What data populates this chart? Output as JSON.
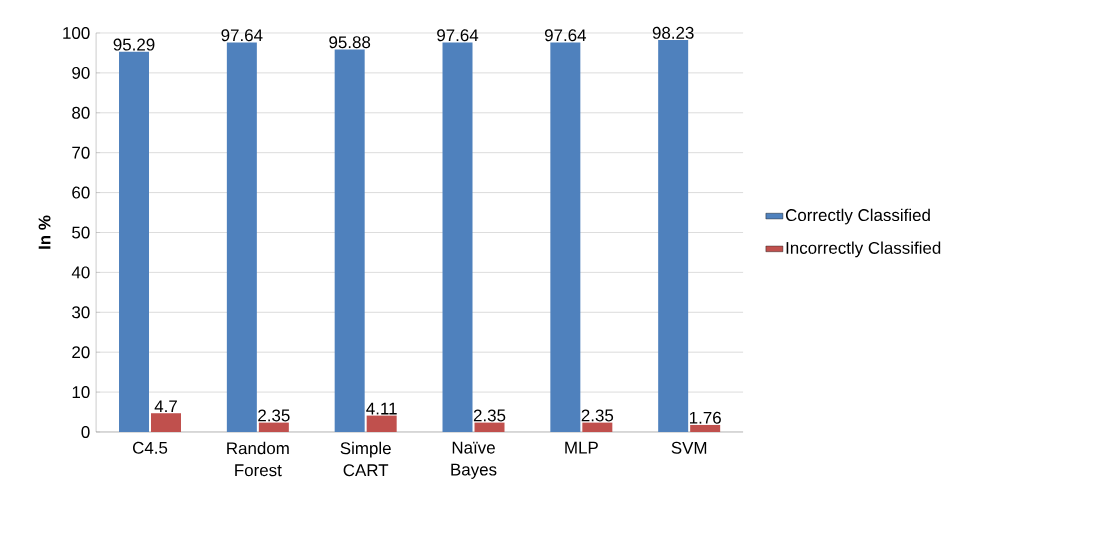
{
  "chart_data": {
    "type": "bar",
    "ylabel": "In %",
    "categories": [
      "C4.5",
      "Random Forest",
      "Simple CART",
      "Naïve Bayes",
      "MLP",
      "SVM"
    ],
    "series": [
      {
        "name": "Correctly Classified",
        "color": "#4f81bd",
        "values": [
          95.29,
          97.64,
          95.88,
          97.64,
          97.64,
          98.23
        ]
      },
      {
        "name": "Incorrectly Classified",
        "color": "#c0504d",
        "values": [
          4.7,
          2.35,
          4.11,
          2.35,
          2.35,
          1.76
        ]
      }
    ],
    "ylim": [
      0,
      100
    ],
    "yticks": [
      0,
      10,
      20,
      30,
      40,
      50,
      60,
      70,
      80,
      90,
      100
    ],
    "grid": "y",
    "legend": "right",
    "data_labels": true
  }
}
